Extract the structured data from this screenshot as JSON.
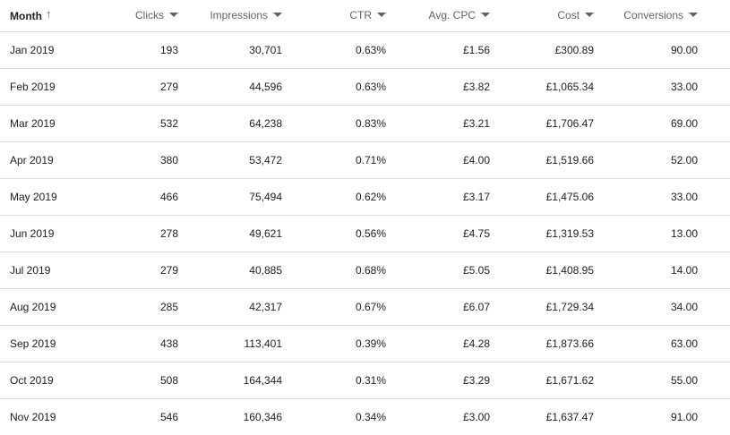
{
  "columns": {
    "month": "Month",
    "clicks": "Clicks",
    "impressions": "Impressions",
    "ctr": "CTR",
    "avg_cpc": "Avg. CPC",
    "cost": "Cost",
    "conversions": "Conversions"
  },
  "sort": {
    "column": "month",
    "direction": "ascending",
    "icon": "arrow-up-icon"
  },
  "rows": [
    {
      "month": "Jan 2019",
      "clicks": "193",
      "impressions": "30,701",
      "ctr": "0.63%",
      "avg_cpc": "£1.56",
      "cost": "£300.89",
      "conversions": "90.00"
    },
    {
      "month": "Feb 2019",
      "clicks": "279",
      "impressions": "44,596",
      "ctr": "0.63%",
      "avg_cpc": "£3.82",
      "cost": "£1,065.34",
      "conversions": "33.00"
    },
    {
      "month": "Mar 2019",
      "clicks": "532",
      "impressions": "64,238",
      "ctr": "0.83%",
      "avg_cpc": "£3.21",
      "cost": "£1,706.47",
      "conversions": "69.00"
    },
    {
      "month": "Apr 2019",
      "clicks": "380",
      "impressions": "53,472",
      "ctr": "0.71%",
      "avg_cpc": "£4.00",
      "cost": "£1,519.66",
      "conversions": "52.00"
    },
    {
      "month": "May 2019",
      "clicks": "466",
      "impressions": "75,494",
      "ctr": "0.62%",
      "avg_cpc": "£3.17",
      "cost": "£1,475.06",
      "conversions": "33.00"
    },
    {
      "month": "Jun 2019",
      "clicks": "278",
      "impressions": "49,621",
      "ctr": "0.56%",
      "avg_cpc": "£4.75",
      "cost": "£1,319.53",
      "conversions": "13.00"
    },
    {
      "month": "Jul 2019",
      "clicks": "279",
      "impressions": "40,885",
      "ctr": "0.68%",
      "avg_cpc": "£5.05",
      "cost": "£1,408.95",
      "conversions": "14.00"
    },
    {
      "month": "Aug 2019",
      "clicks": "285",
      "impressions": "42,317",
      "ctr": "0.67%",
      "avg_cpc": "£6.07",
      "cost": "£1,729.34",
      "conversions": "34.00"
    },
    {
      "month": "Sep 2019",
      "clicks": "438",
      "impressions": "113,401",
      "ctr": "0.39%",
      "avg_cpc": "£4.28",
      "cost": "£1,873.66",
      "conversions": "63.00"
    },
    {
      "month": "Oct 2019",
      "clicks": "508",
      "impressions": "164,344",
      "ctr": "0.31%",
      "avg_cpc": "£3.29",
      "cost": "£1,671.62",
      "conversions": "55.00"
    },
    {
      "month": "Nov 2019",
      "clicks": "546",
      "impressions": "160,346",
      "ctr": "0.34%",
      "avg_cpc": "£3.00",
      "cost": "£1,637.47",
      "conversions": "91.00"
    }
  ]
}
